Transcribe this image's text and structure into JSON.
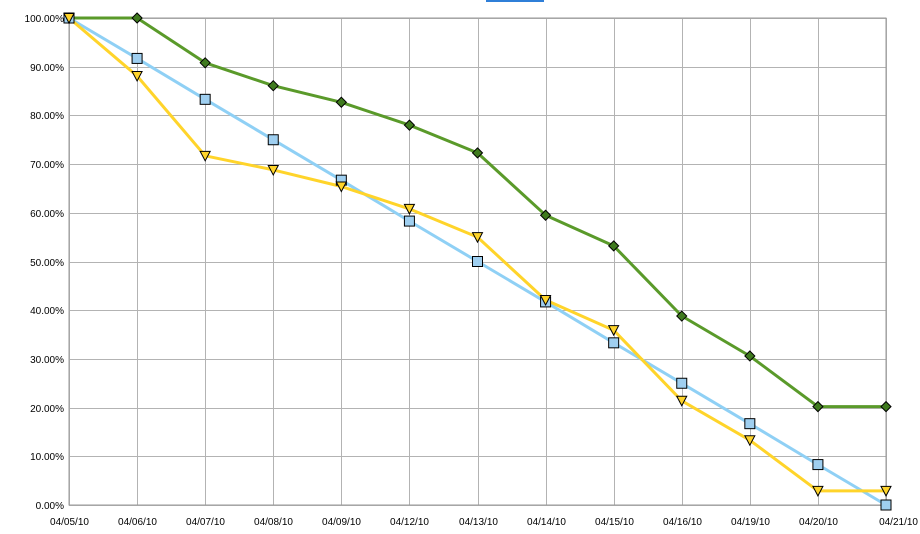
{
  "chart_data": {
    "type": "line",
    "title": "",
    "xlabel": "",
    "ylabel": "",
    "categories": [
      "04/05/10",
      "04/06/10",
      "04/07/10",
      "04/08/10",
      "04/09/10",
      "04/12/10",
      "04/13/10",
      "04/14/10",
      "04/15/10",
      "04/16/10",
      "04/19/10",
      "04/20/10",
      "04/21/10"
    ],
    "ylim": [
      0,
      100
    ],
    "yticks": [
      {
        "value": 0,
        "label": "0.00%"
      },
      {
        "value": 10,
        "label": "10.00%"
      },
      {
        "value": 20,
        "label": "20.00%"
      },
      {
        "value": 30,
        "label": "30.00%"
      },
      {
        "value": 40,
        "label": "40.00%"
      },
      {
        "value": 50,
        "label": "50.00%"
      },
      {
        "value": 60,
        "label": "60.00%"
      },
      {
        "value": 70,
        "label": "70.00%"
      },
      {
        "value": 80,
        "label": "80.00%"
      },
      {
        "value": 90,
        "label": "90.00%"
      },
      {
        "value": 100,
        "label": "100.00%"
      }
    ],
    "grid": true,
    "legend": "none",
    "series": [
      {
        "color": "#5a9a2a",
        "marker": "diamond",
        "marker_fill": "#3f7a1e",
        "values": [
          100,
          100,
          90.8,
          86.1,
          82.7,
          78.0,
          72.3,
          59.5,
          53.2,
          38.8,
          30.6,
          20.2,
          20.2
        ]
      },
      {
        "color": "#8fd0f5",
        "marker": "square",
        "marker_fill": "#9fcff0",
        "values": [
          100,
          91.7,
          83.3,
          75.0,
          66.7,
          58.3,
          50.0,
          41.7,
          33.3,
          25.0,
          16.7,
          8.3,
          0.0
        ]
      },
      {
        "color": "#ffd42a",
        "marker": "triangle-down",
        "marker_fill": "#ffd42a",
        "values": [
          100,
          88.1,
          71.7,
          68.8,
          65.4,
          60.8,
          55.0,
          42.1,
          35.9,
          21.4,
          13.3,
          2.9,
          2.9
        ]
      }
    ]
  }
}
